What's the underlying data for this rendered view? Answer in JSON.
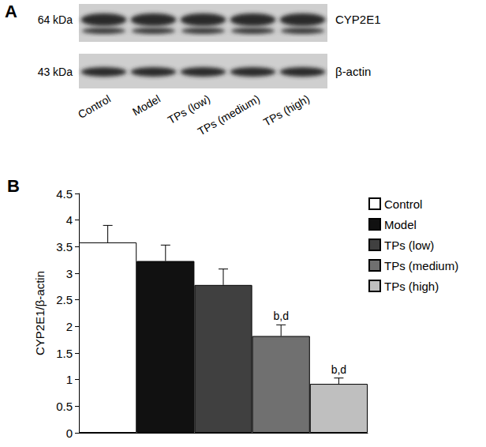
{
  "blot": {
    "panel_label": "A",
    "rows": [
      {
        "size_label": "64 kDa",
        "label": "CYP2E1"
      },
      {
        "size_label": "43 kDa",
        "label": "β-actin"
      }
    ],
    "lanes": [
      "Control",
      "Model",
      "TPs (low)",
      "TPs (medium)",
      "TPs (high)"
    ]
  },
  "chart_data": {
    "type": "bar",
    "panel_label": "B",
    "y_label": "CYP2E1/β-actin",
    "categories": [
      "Control",
      "Model",
      "TPs (low)",
      "TPs (medium)",
      "TPs (high)"
    ],
    "values": [
      3.58,
      3.23,
      2.78,
      1.82,
      0.92
    ],
    "errors": [
      0.32,
      0.3,
      0.3,
      0.21,
      0.11
    ],
    "annotations": [
      null,
      null,
      null,
      "b,d",
      "b,d"
    ],
    "colors": [
      "#ffffff",
      "#111111",
      "#404040",
      "#707070",
      "#bfbfbf"
    ],
    "ylim": [
      0,
      4.5
    ],
    "yticks": [
      0,
      0.5,
      1,
      1.5,
      2,
      2.5,
      3,
      3.5,
      4,
      4.5
    ],
    "grid": false,
    "legend": "top-right",
    "tick_labels": "y"
  }
}
